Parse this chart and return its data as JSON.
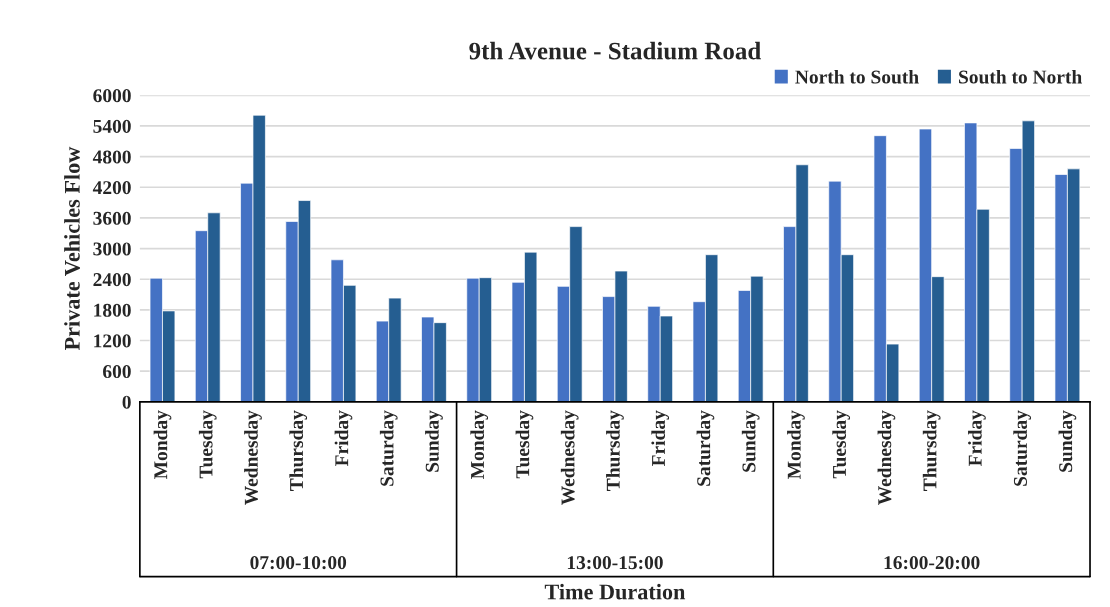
{
  "chart_data": {
    "type": "bar",
    "title": "9th Avenue - Stadium Road",
    "xlabel": "Time Duration",
    "ylabel": "Private Vehicles Flow",
    "categories": [
      "Monday",
      "Tuesday",
      "Wednesday",
      "Thursday",
      "Friday",
      "Saturday",
      "Sunday",
      "Monday",
      "Tuesday",
      "Wednesday",
      "Thursday",
      "Friday",
      "Saturday",
      "Sunday",
      "Monday",
      "Tuesday",
      "Wednesday",
      "Thursday",
      "Friday",
      "Saturday",
      "Sunday"
    ],
    "series": [
      {
        "name": "North to South",
        "color": "#4472c4",
        "values": [
          2420,
          3350,
          4280,
          3530,
          2780,
          1580,
          1660,
          2420,
          2340,
          2260,
          2060,
          1870,
          1960,
          2180,
          3430,
          4320,
          5210,
          5340,
          5460,
          4960,
          4450
        ]
      },
      {
        "name": "South to North",
        "color": "#255e91",
        "values": [
          1780,
          3700,
          5610,
          3940,
          2280,
          2030,
          1550,
          2430,
          2930,
          3430,
          2560,
          1680,
          2880,
          2460,
          4640,
          2880,
          1130,
          2450,
          3770,
          5500,
          4560
        ]
      }
    ],
    "annotations": [
      "07:00-10:00",
      "13:00-15:00",
      "16:00-20:00"
    ],
    "ylim": [
      0,
      6000
    ],
    "yticks": [
      0,
      600,
      1200,
      1800,
      2400,
      3000,
      3600,
      4200,
      4800,
      5400,
      6000
    ],
    "grid": "y",
    "legend": "top right"
  }
}
